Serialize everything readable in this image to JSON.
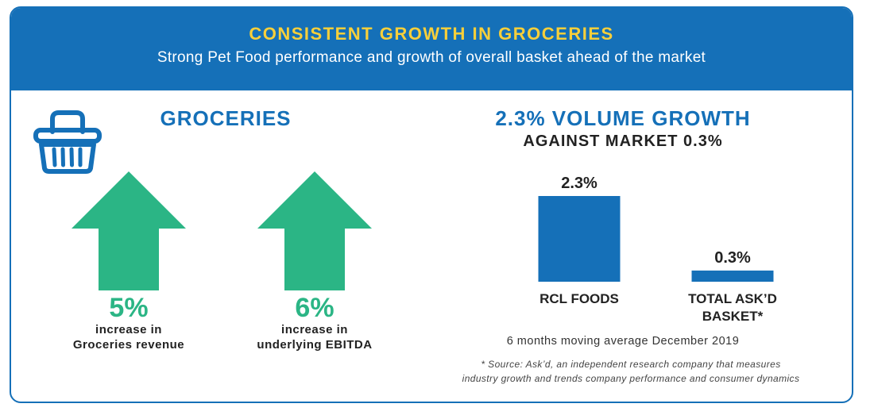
{
  "banner": {
    "title": "CONSISTENT GROWTH IN GROCERIES",
    "subtitle": "Strong Pet Food performance and growth of overall basket ahead of the market"
  },
  "groceries": {
    "heading": "GROCERIES",
    "icon": "basket-icon",
    "stats": [
      {
        "pct": "5%",
        "line1": "increase in",
        "line2": "Groceries revenue"
      },
      {
        "pct": "6%",
        "line1": "increase in",
        "line2": "underlying EBITDA"
      }
    ]
  },
  "volume": {
    "heading": "2.3% VOLUME GROWTH",
    "subheading": "AGAINST MARKET 0.3%",
    "note": "6 months moving average December 2019",
    "source_line1": "* Source: Ask’d, an independent research company that measures",
    "source_line2": "industry growth and trends company performance and consumer dynamics"
  },
  "colors": {
    "primary_blue": "#1570b8",
    "title_yellow": "#f8cf3a",
    "arrow_green": "#2bb585"
  },
  "chart_data": {
    "type": "bar",
    "categories": [
      "RCL FOODS",
      "TOTAL ASK’D BASKET*"
    ],
    "category_lines": [
      [
        "RCL FOODS"
      ],
      [
        "TOTAL ASK’D",
        "BASKET*"
      ]
    ],
    "values": [
      2.3,
      0.3
    ],
    "value_labels": [
      "2.3%",
      "0.3%"
    ],
    "title": "",
    "ylim": [
      0,
      2.3
    ],
    "grid": false,
    "color": "#1570b8"
  }
}
